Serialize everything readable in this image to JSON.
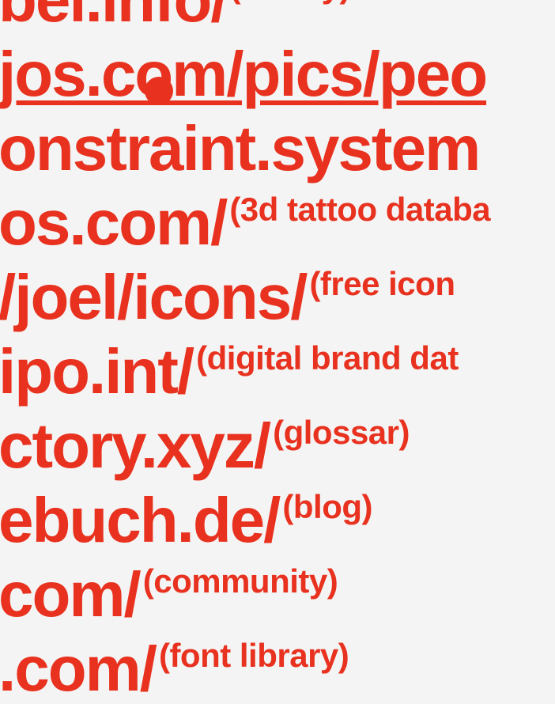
{
  "links": [
    {
      "text": "bel.info/",
      "note": "(theory)"
    },
    {
      "text": "jos.com/pics/peo"
    },
    {
      "text": "onstraint.system"
    },
    {
      "text": "os.com/",
      "note": "(3d tattoo databa"
    },
    {
      "text": "/joel/icons/",
      "note": "(free icon"
    },
    {
      "text": "ipo.int/",
      "note": "(digital brand dat"
    },
    {
      "text": "ctory.xyz/",
      "note": "(glossar)"
    },
    {
      "text": "ebuch.de/",
      "note": "(blog)"
    },
    {
      "text": "com/",
      "note": "(community)"
    },
    {
      "text": ".com/",
      "note": "(font library)"
    }
  ]
}
